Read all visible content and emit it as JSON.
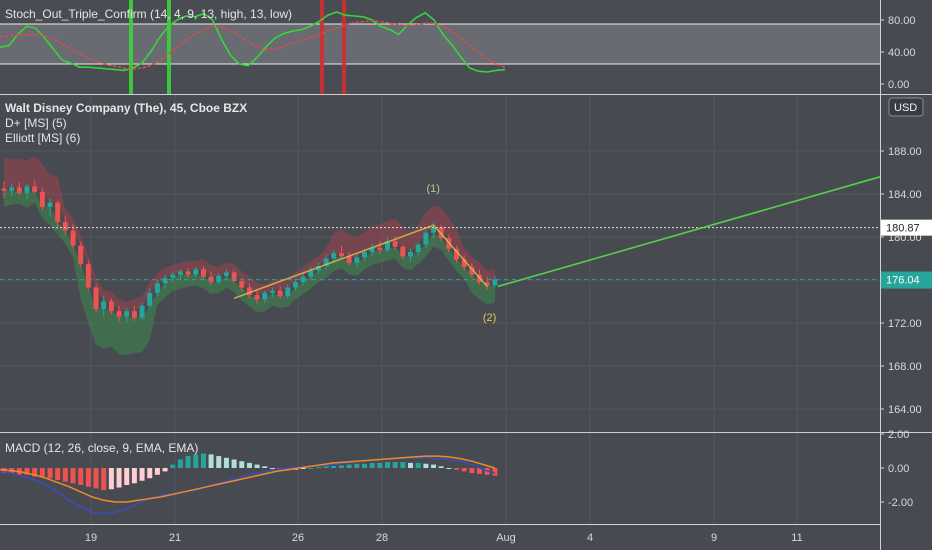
{
  "chart_data": [
    {
      "type": "line",
      "title": "Stoch_Out_Triple_Confirm (14, 4, 9, 13, high, 13, low)",
      "y_ticks": [
        "80.00",
        "40.00",
        "0.00"
      ],
      "ylim": [
        0,
        100
      ],
      "levels": [
        80,
        20
      ],
      "series": [
        {
          "color": "#3ad43a",
          "values": [
            46,
            48,
            62,
            72,
            70,
            58,
            44,
            30,
            26,
            21,
            21,
            20,
            19,
            18,
            17,
            20,
            26,
            40,
            58,
            72,
            80,
            85,
            84,
            88,
            80,
            56,
            36,
            25,
            23,
            33,
            46,
            57,
            63,
            66,
            68,
            72,
            78,
            86,
            90,
            86,
            85,
            84,
            80,
            72,
            68,
            62,
            74,
            83,
            89,
            80,
            62,
            49,
            34,
            20,
            16,
            15,
            17,
            18
          ]
        },
        {
          "color": "#e04a4a",
          "values": [
            59,
            60,
            61,
            61,
            62,
            60,
            56,
            50,
            44,
            38,
            32,
            28,
            24,
            22,
            20,
            19,
            20,
            23,
            29,
            37,
            46,
            55,
            62,
            68,
            72,
            71,
            67,
            60,
            53,
            47,
            43,
            44,
            47,
            51,
            55,
            58,
            62,
            66,
            70,
            74,
            77,
            78,
            79,
            78,
            76,
            74,
            73,
            74,
            76,
            76,
            72,
            66,
            58,
            48,
            39,
            31,
            25,
            21
          ]
        }
      ],
      "signals_green": [
        "19/20",
        "21"
      ],
      "signals_red": [
        "26/27"
      ]
    },
    {
      "type": "candlestick",
      "title": "Walt Disney Company (The), 45, Cboe BZX",
      "indicators": [
        "D+ [MS] (5)",
        "Elliott [MS] (6)"
      ],
      "currency": "USD",
      "y_ticks": [
        "188.00",
        "184.00",
        "180.00",
        "176.00",
        "172.00",
        "168.00",
        "164.00"
      ],
      "ylim": [
        162,
        190
      ],
      "current_price": "176.04",
      "dotted_level": "180.87",
      "ohlc": [
        [
          184.5,
          185.2,
          183.6,
          184.3
        ],
        [
          184.3,
          185.0,
          183.8,
          184.6
        ],
        [
          184.6,
          185.1,
          183.9,
          184.1
        ],
        [
          184.1,
          184.9,
          183.5,
          184.7
        ],
        [
          184.7,
          185.3,
          184.0,
          184.2
        ],
        [
          184.2,
          184.6,
          182.5,
          182.8
        ],
        [
          182.8,
          183.6,
          181.9,
          183.2
        ],
        [
          183.2,
          183.4,
          181.0,
          181.4
        ],
        [
          181.4,
          182.0,
          180.2,
          180.6
        ],
        [
          180.6,
          181.2,
          178.9,
          179.2
        ],
        [
          179.2,
          179.6,
          177.2,
          177.5
        ],
        [
          177.5,
          177.8,
          175.0,
          175.3
        ],
        [
          175.3,
          175.6,
          173.0,
          173.3
        ],
        [
          173.3,
          174.5,
          172.6,
          174.0
        ],
        [
          174.0,
          174.3,
          172.8,
          173.1
        ],
        [
          173.1,
          173.6,
          172.1,
          172.6
        ],
        [
          172.6,
          173.4,
          172.0,
          173.1
        ],
        [
          173.1,
          173.6,
          172.2,
          172.5
        ],
        [
          172.5,
          173.9,
          172.3,
          173.6
        ],
        [
          173.6,
          175.2,
          173.4,
          174.8
        ],
        [
          174.8,
          176.0,
          174.5,
          175.7
        ],
        [
          175.7,
          176.5,
          175.2,
          176.2
        ],
        [
          176.2,
          176.8,
          175.8,
          176.5
        ],
        [
          176.5,
          177.0,
          176.0,
          176.8
        ],
        [
          176.8,
          177.1,
          176.2,
          176.5
        ],
        [
          176.5,
          177.2,
          176.3,
          177.0
        ],
        [
          177.0,
          177.3,
          176.0,
          176.3
        ],
        [
          176.3,
          176.8,
          175.5,
          175.8
        ],
        [
          175.8,
          176.6,
          175.6,
          176.4
        ],
        [
          176.4,
          177.0,
          176.1,
          176.7
        ],
        [
          176.7,
          176.9,
          175.7,
          175.9
        ],
        [
          175.9,
          176.2,
          174.9,
          175.3
        ],
        [
          175.3,
          175.7,
          174.3,
          174.6
        ],
        [
          174.6,
          175.1,
          173.8,
          174.2
        ],
        [
          174.2,
          175.0,
          173.9,
          174.8
        ],
        [
          174.8,
          175.3,
          174.4,
          175.0
        ],
        [
          175.0,
          175.5,
          174.2,
          174.5
        ],
        [
          174.5,
          175.6,
          174.3,
          175.3
        ],
        [
          175.3,
          176.1,
          175.0,
          175.8
        ],
        [
          175.8,
          176.6,
          175.5,
          176.3
        ],
        [
          176.3,
          177.2,
          176.0,
          176.9
        ],
        [
          176.9,
          177.6,
          176.6,
          177.3
        ],
        [
          177.3,
          178.4,
          177.0,
          178.0
        ],
        [
          178.0,
          178.8,
          177.6,
          178.5
        ],
        [
          178.5,
          179.2,
          177.9,
          178.2
        ],
        [
          178.2,
          178.6,
          177.3,
          177.6
        ],
        [
          177.6,
          178.4,
          177.2,
          178.1
        ],
        [
          178.1,
          178.9,
          177.8,
          178.6
        ],
        [
          178.6,
          179.4,
          178.2,
          179.0
        ],
        [
          179.0,
          179.6,
          178.4,
          178.8
        ],
        [
          178.8,
          179.9,
          178.6,
          179.6
        ],
        [
          179.6,
          180.1,
          178.8,
          179.1
        ],
        [
          179.1,
          179.3,
          177.9,
          178.2
        ],
        [
          178.2,
          178.9,
          177.7,
          178.6
        ],
        [
          178.6,
          179.5,
          178.3,
          179.3
        ],
        [
          179.3,
          180.7,
          179.0,
          180.4
        ],
        [
          180.4,
          181.3,
          179.9,
          180.9
        ],
        [
          180.9,
          181.1,
          179.6,
          179.9
        ],
        [
          179.9,
          180.2,
          178.6,
          178.9
        ],
        [
          178.9,
          179.2,
          177.6,
          177.9
        ],
        [
          177.9,
          178.3,
          176.9,
          177.2
        ],
        [
          177.2,
          177.6,
          176.2,
          176.5
        ],
        [
          176.5,
          177.0,
          175.6,
          175.8
        ],
        [
          175.8,
          176.3,
          175.1,
          175.5
        ],
        [
          175.5,
          176.4,
          175.3,
          176.04
        ]
      ],
      "wave_labels": [
        "(1)",
        "(2)"
      ],
      "projection_end_price": 185.6
    },
    {
      "type": "bar",
      "title": "MACD (12, 26, close, 9, EMA, EMA)",
      "y_ticks": [
        "2.00",
        "0.00",
        "-2.00"
      ],
      "ylim": [
        -3,
        2.5
      ],
      "histogram": [
        -0.3,
        -0.3,
        -0.4,
        -0.4,
        -0.5,
        -0.5,
        -0.6,
        -0.7,
        -0.8,
        -0.9,
        -1.0,
        -1.1,
        -1.2,
        -1.3,
        -1.25,
        -1.15,
        -1.0,
        -0.9,
        -0.75,
        -0.6,
        -0.4,
        -0.2,
        0.2,
        0.5,
        0.7,
        0.8,
        0.85,
        0.8,
        0.7,
        0.6,
        0.5,
        0.4,
        0.3,
        0.2,
        0.1,
        0.0,
        -0.1,
        -0.15,
        -0.1,
        -0.05,
        0.0,
        0.05,
        0.1,
        0.12,
        0.15,
        0.2,
        0.25,
        0.25,
        0.3,
        0.3,
        0.35,
        0.35,
        0.35,
        0.3,
        0.3,
        0.25,
        0.2,
        0.1,
        0.0,
        -0.1,
        -0.2,
        -0.3,
        -0.35,
        -0.4,
        -0.45
      ],
      "series": [
        {
          "color": "#3b4cc0",
          "values": [
            -0.2,
            -0.3,
            -0.5,
            -0.7,
            -1.0,
            -1.4,
            -1.9,
            -2.3,
            -2.6,
            -2.7,
            -2.6,
            -2.4,
            -2.1,
            -1.8,
            -1.6,
            -1.5,
            -1.4,
            -1.3,
            -1.1,
            -0.9,
            -0.7,
            -0.5,
            -0.35,
            -0.2,
            -0.1,
            0.0,
            0.05,
            0.1,
            0.15,
            0.2,
            0.3,
            0.4,
            0.45,
            0.5,
            0.55,
            0.6,
            0.6,
            0.6,
            0.55,
            0.5,
            0.4,
            0.2,
            -0.1,
            -0.3
          ]
        },
        {
          "color": "#f08a24",
          "values": [
            -0.1,
            -0.15,
            -0.25,
            -0.4,
            -0.6,
            -0.85,
            -1.1,
            -1.4,
            -1.7,
            -1.9,
            -2.0,
            -2.0,
            -1.9,
            -1.8,
            -1.7,
            -1.55,
            -1.4,
            -1.25,
            -1.1,
            -0.95,
            -0.8,
            -0.65,
            -0.5,
            -0.35,
            -0.2,
            -0.1,
            0.0,
            0.1,
            0.2,
            0.3,
            0.35,
            0.4,
            0.45,
            0.5,
            0.55,
            0.6,
            0.65,
            0.7,
            0.7,
            0.65,
            0.55,
            0.4,
            0.2,
            0.0
          ]
        }
      ]
    }
  ],
  "x_axis": {
    "labels": [
      "19",
      "21",
      "26",
      "28",
      "Aug",
      "4",
      "9",
      "11"
    ]
  }
}
